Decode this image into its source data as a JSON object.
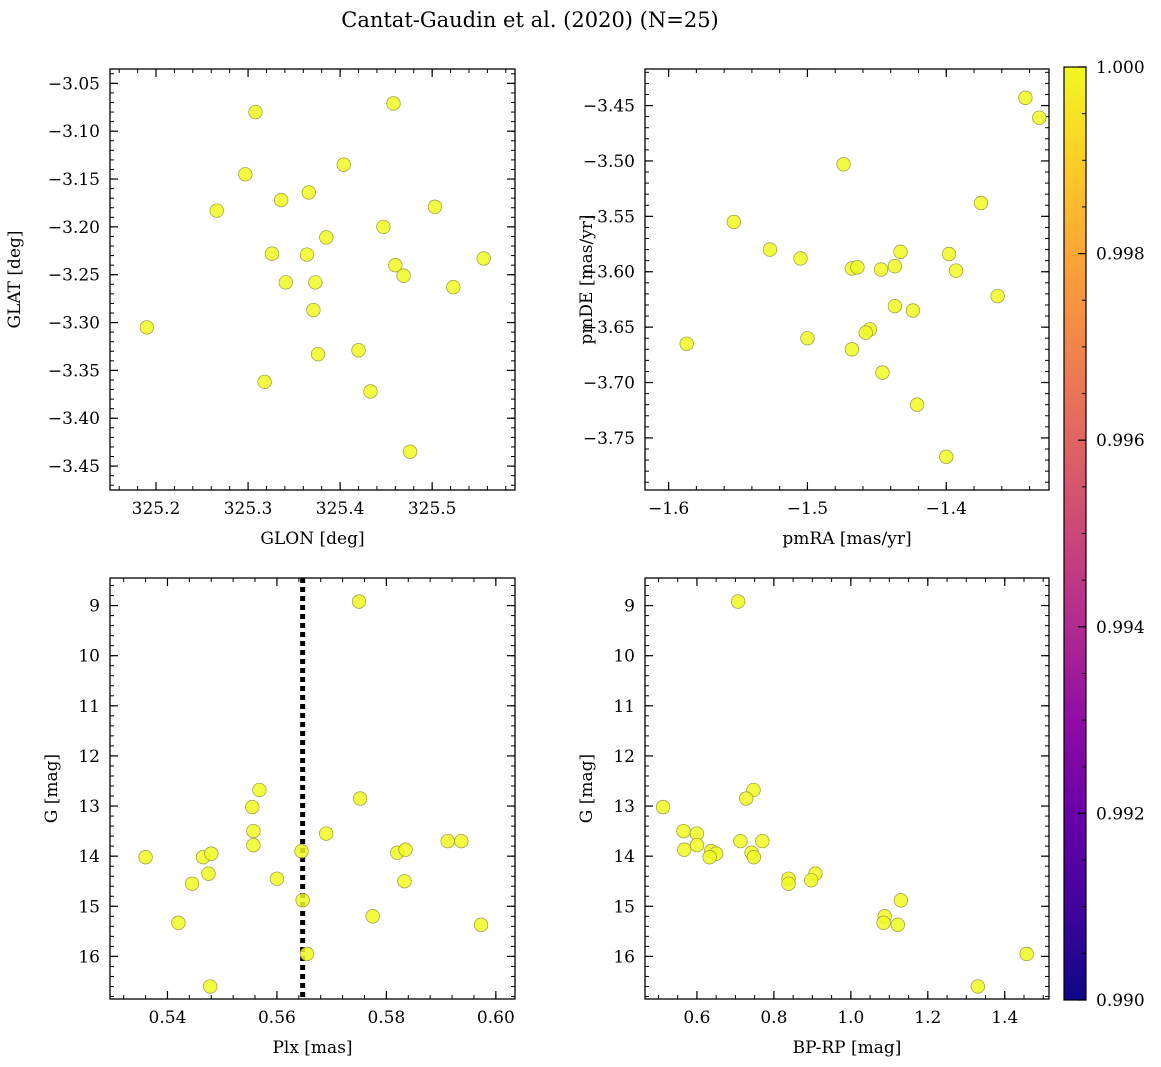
{
  "title": "Cantat-Gaudin et al. (2020) (N=25)",
  "colors": {
    "point_fill": "#f0f921",
    "point_edge": "#9a9a40",
    "vline": "#000000"
  },
  "colorbar": {
    "min": 0.99,
    "max": 1.0,
    "cmap": "plasma",
    "ticks": [
      "0.990",
      "0.992",
      "0.994",
      "0.996",
      "0.998",
      "1.000"
    ],
    "tick_values": [
      0.99,
      0.992,
      0.994,
      0.996,
      0.998,
      1.0
    ]
  },
  "chart_data": [
    {
      "type": "scatter",
      "xlabel": "GLON [deg]",
      "ylabel": "GLAT [deg]",
      "xlim": [
        325.15,
        325.59
      ],
      "ylim": [
        -3.475,
        -3.035
      ],
      "xticks": [
        325.2,
        325.3,
        325.4,
        325.5
      ],
      "xtick_labels": [
        "325.2",
        "325.3",
        "325.4",
        "325.5"
      ],
      "yticks": [
        -3.45,
        -3.4,
        -3.35,
        -3.3,
        -3.25,
        -3.2,
        -3.15,
        -3.1,
        -3.05
      ],
      "ytick_labels": [
        "−3.45",
        "−3.40",
        "−3.35",
        "−3.30",
        "−3.25",
        "−3.20",
        "−3.15",
        "−3.10",
        "−3.05"
      ],
      "x": [
        325.19,
        325.308,
        325.458,
        325.297,
        325.266,
        325.404,
        325.366,
        325.336,
        325.503,
        325.447,
        325.326,
        325.364,
        325.385,
        325.341,
        325.373,
        325.46,
        325.469,
        325.556,
        325.523,
        325.371,
        325.376,
        325.42,
        325.318,
        325.433,
        325.476
      ],
      "y": [
        -3.305,
        -3.08,
        -3.071,
        -3.145,
        -3.183,
        -3.135,
        -3.164,
        -3.172,
        -3.179,
        -3.2,
        -3.228,
        -3.229,
        -3.211,
        -3.258,
        -3.258,
        -3.24,
        -3.251,
        -3.233,
        -3.263,
        -3.287,
        -3.333,
        -3.329,
        -3.362,
        -3.372,
        -3.435
      ]
    },
    {
      "type": "scatter",
      "xlabel": "pmRA [mas/yr]",
      "ylabel": "pmDE [mas/yr]",
      "xlim": [
        -1.617,
        -1.326
      ],
      "ylim": [
        -3.797,
        -3.417
      ],
      "xticks": [
        -1.6,
        -1.5,
        -1.4
      ],
      "xtick_labels": [
        "−1.6",
        "−1.5",
        "−1.4"
      ],
      "yticks": [
        -3.75,
        -3.7,
        -3.65,
        -3.6,
        -3.55,
        -3.5,
        -3.45
      ],
      "ytick_labels": [
        "−3.75",
        "−3.70",
        "−3.65",
        "−3.60",
        "−3.55",
        "−3.50",
        "−3.45"
      ],
      "x": [
        -1.343,
        -1.333,
        -1.474,
        -1.375,
        -1.553,
        -1.527,
        -1.505,
        -1.468,
        -1.464,
        -1.447,
        -1.437,
        -1.433,
        -1.398,
        -1.393,
        -1.363,
        -1.437,
        -1.424,
        -1.455,
        -1.458,
        -1.468,
        -1.5,
        -1.587,
        -1.446,
        -1.421,
        -1.4
      ],
      "y": [
        -3.443,
        -3.461,
        -3.503,
        -3.538,
        -3.555,
        -3.58,
        -3.588,
        -3.597,
        -3.596,
        -3.598,
        -3.595,
        -3.582,
        -3.584,
        -3.599,
        -3.622,
        -3.631,
        -3.635,
        -3.652,
        -3.655,
        -3.67,
        -3.66,
        -3.665,
        -3.691,
        -3.72,
        -3.767
      ]
    },
    {
      "type": "scatter",
      "xlabel": "Plx [mas]",
      "ylabel": "G [mag]",
      "xlim": [
        0.5295,
        0.6035
      ],
      "ylim": [
        16.85,
        8.45
      ],
      "xticks": [
        0.54,
        0.56,
        0.58,
        0.6
      ],
      "xtick_labels": [
        "0.54",
        "0.56",
        "0.58",
        "0.60"
      ],
      "yticks": [
        9,
        10,
        11,
        12,
        13,
        14,
        15,
        16
      ],
      "ytick_labels": [
        "9",
        "10",
        "11",
        "12",
        "13",
        "14",
        "15",
        "16"
      ],
      "vline_x": 0.5647,
      "x": [
        0.536,
        0.542,
        0.5445,
        0.5465,
        0.5475,
        0.548,
        0.5478,
        0.5555,
        0.5557,
        0.5557,
        0.5568,
        0.56,
        0.5645,
        0.5647,
        0.5655,
        0.569,
        0.575,
        0.5752,
        0.5775,
        0.582,
        0.5833,
        0.5835,
        0.5912,
        0.5937,
        0.5973
      ],
      "y": [
        14.02,
        15.33,
        14.55,
        14.02,
        14.35,
        13.95,
        16.6,
        13.02,
        13.5,
        13.78,
        12.68,
        14.45,
        13.9,
        14.88,
        15.95,
        13.55,
        8.92,
        12.85,
        15.2,
        13.93,
        14.5,
        13.87,
        13.7,
        13.7,
        15.37
      ]
    },
    {
      "type": "scatter",
      "xlabel": "BP-RP [mag]",
      "ylabel": "G [mag]",
      "xlim": [
        0.465,
        1.515
      ],
      "ylim": [
        16.85,
        8.45
      ],
      "xticks": [
        0.6,
        0.8,
        1.0,
        1.2,
        1.4
      ],
      "xtick_labels": [
        "0.6",
        "0.8",
        "1.0",
        "1.2",
        "1.4"
      ],
      "yticks": [
        9,
        10,
        11,
        12,
        13,
        14,
        15,
        16
      ],
      "ytick_labels": [
        "9",
        "10",
        "11",
        "12",
        "13",
        "14",
        "15",
        "16"
      ],
      "x": [
        0.707,
        0.512,
        0.747,
        0.728,
        0.565,
        0.6,
        0.713,
        0.77,
        0.567,
        0.6,
        0.637,
        0.65,
        0.742,
        0.748,
        0.633,
        0.838,
        0.838,
        0.908,
        0.897,
        1.13,
        1.088,
        1.085,
        1.122,
        1.457,
        1.33
      ],
      "y": [
        8.92,
        13.02,
        12.68,
        12.85,
        13.5,
        13.55,
        13.7,
        13.7,
        13.87,
        13.78,
        13.9,
        13.95,
        13.93,
        14.02,
        14.02,
        14.45,
        14.55,
        14.35,
        14.48,
        14.88,
        15.2,
        15.33,
        15.37,
        15.95,
        16.6
      ]
    }
  ]
}
